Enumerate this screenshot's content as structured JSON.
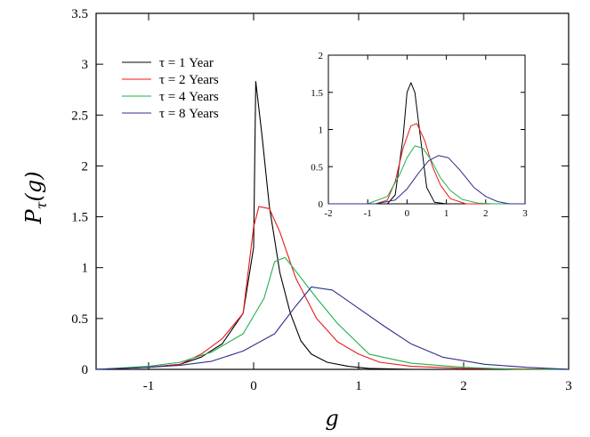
{
  "chart_data": [
    {
      "type": "line",
      "xlabel": "g",
      "ylabel_main": "P",
      "ylabel_sub": "τ",
      "ylabel_arg": "(g)",
      "xlim": [
        -1.5,
        3
      ],
      "ylim": [
        0,
        3.5
      ],
      "x_ticks": [
        -1,
        0,
        1,
        2,
        3
      ],
      "x_tick_labels": [
        "-1",
        "0",
        "1",
        "2",
        "3"
      ],
      "y_ticks": [
        0,
        0.5,
        1,
        1.5,
        2,
        2.5,
        3,
        3.5
      ],
      "y_tick_labels": [
        "0",
        "0.5",
        "1",
        "1.5",
        "2",
        "2.5",
        "3",
        "3.5"
      ],
      "legend_position": "top-left",
      "series": [
        {
          "name": "τ = 1 Year",
          "color": "#000000",
          "x": [
            -1.5,
            -1.0,
            -0.7,
            -0.5,
            -0.3,
            -0.1,
            0.0,
            0.02,
            0.08,
            0.15,
            0.25,
            0.35,
            0.45,
            0.55,
            0.7,
            0.9,
            1.1,
            1.5,
            2.0,
            3.0
          ],
          "y": [
            0.0,
            0.02,
            0.05,
            0.12,
            0.25,
            0.55,
            1.2,
            2.83,
            2.3,
            1.6,
            0.95,
            0.55,
            0.28,
            0.15,
            0.07,
            0.03,
            0.01,
            0.0,
            0.0,
            0.0
          ]
        },
        {
          "name": "τ = 2 Years",
          "color": "#e8191c",
          "x": [
            -1.5,
            -1.0,
            -0.7,
            -0.5,
            -0.3,
            -0.1,
            0.0,
            0.05,
            0.15,
            0.25,
            0.4,
            0.5,
            0.6,
            0.8,
            1.0,
            1.2,
            1.5,
            2.0,
            3.0
          ],
          "y": [
            0.0,
            0.02,
            0.05,
            0.15,
            0.3,
            0.55,
            1.4,
            1.6,
            1.58,
            1.35,
            0.9,
            0.7,
            0.5,
            0.27,
            0.15,
            0.07,
            0.03,
            0.01,
            0.0
          ]
        },
        {
          "name": "τ = 4 Years",
          "color": "#1fb04c",
          "x": [
            -1.5,
            -1.0,
            -0.7,
            -0.4,
            -0.1,
            0.1,
            0.2,
            0.3,
            0.45,
            0.6,
            0.8,
            1.1,
            1.5,
            2.0,
            2.5,
            3.0
          ],
          "y": [
            0.0,
            0.03,
            0.07,
            0.17,
            0.35,
            0.7,
            1.06,
            1.1,
            0.9,
            0.7,
            0.45,
            0.15,
            0.06,
            0.02,
            0.0,
            0.0
          ]
        },
        {
          "name": "τ = 8 Years",
          "color": "#2d2e8c",
          "x": [
            -1.5,
            -1.0,
            -0.7,
            -0.4,
            -0.1,
            0.2,
            0.4,
            0.55,
            0.75,
            1.0,
            1.25,
            1.5,
            1.8,
            2.2,
            2.6,
            3.0
          ],
          "y": [
            0.0,
            0.02,
            0.04,
            0.08,
            0.18,
            0.35,
            0.62,
            0.81,
            0.78,
            0.6,
            0.42,
            0.25,
            0.12,
            0.05,
            0.02,
            0.0
          ]
        }
      ]
    },
    {
      "type": "line",
      "xlim": [
        -2,
        3
      ],
      "ylim": [
        0,
        2
      ],
      "x_ticks": [
        -2,
        -1,
        0,
        1,
        2,
        3
      ],
      "x_tick_labels": [
        "-2",
        "-1",
        "0",
        "1",
        "2",
        "3"
      ],
      "y_ticks": [
        0,
        0.5,
        1,
        1.5,
        2
      ],
      "y_tick_labels": [
        "0",
        "0.5",
        "1",
        "1.5",
        "2"
      ],
      "series": [
        {
          "color": "#000000",
          "x": [
            -2.0,
            -0.5,
            -0.3,
            -0.1,
            0.0,
            0.1,
            0.2,
            0.35,
            0.5,
            0.7,
            1.0,
            3.0
          ],
          "y": [
            0.0,
            0.0,
            0.12,
            0.9,
            1.5,
            1.63,
            1.5,
            0.85,
            0.22,
            0.02,
            0.0,
            0.0
          ]
        },
        {
          "color": "#e8191c",
          "x": [
            -2.0,
            -0.8,
            -0.5,
            -0.3,
            -0.1,
            0.1,
            0.25,
            0.45,
            0.65,
            0.85,
            1.1,
            1.5,
            3.0
          ],
          "y": [
            0.0,
            0.0,
            0.05,
            0.3,
            0.75,
            1.05,
            1.08,
            0.85,
            0.5,
            0.25,
            0.07,
            0.0,
            0.0
          ]
        },
        {
          "color": "#1fb04c",
          "x": [
            -2.0,
            -1.0,
            -0.5,
            -0.2,
            0.0,
            0.2,
            0.4,
            0.6,
            0.85,
            1.1,
            1.4,
            1.8,
            2.2,
            3.0
          ],
          "y": [
            0.0,
            0.0,
            0.1,
            0.38,
            0.62,
            0.78,
            0.75,
            0.6,
            0.35,
            0.18,
            0.06,
            0.01,
            0.0,
            0.0
          ]
        },
        {
          "color": "#2d2e8c",
          "x": [
            -2.0,
            -0.8,
            -0.3,
            0.0,
            0.3,
            0.55,
            0.8,
            1.05,
            1.35,
            1.7,
            2.0,
            2.3,
            2.6,
            3.0
          ],
          "y": [
            0.0,
            0.0,
            0.05,
            0.2,
            0.42,
            0.58,
            0.65,
            0.62,
            0.45,
            0.22,
            0.1,
            0.03,
            0.0,
            0.0
          ]
        }
      ]
    }
  ]
}
